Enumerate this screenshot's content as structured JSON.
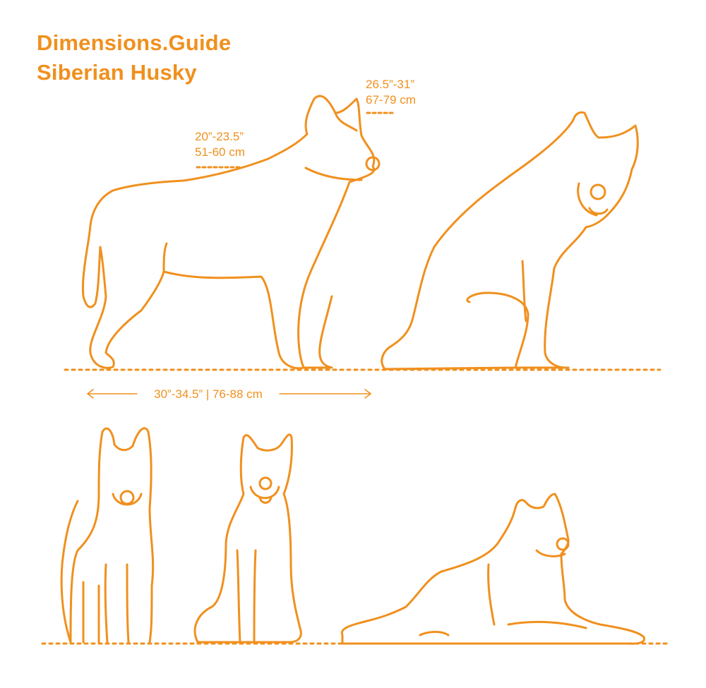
{
  "header": {
    "brand": "Dimensions.Guide",
    "subject": "Siberian Husky"
  },
  "dimensions": {
    "head_height": {
      "imperial": "26.5”-31”",
      "metric": "67-79 cm"
    },
    "shoulder_height": {
      "imperial": "20”-23.5”",
      "metric": "51-60 cm"
    },
    "length": {
      "label": "30”-34.5” | 76-88 cm"
    }
  },
  "poses": [
    "standing-side",
    "sitting-side",
    "standing-front",
    "sitting-front",
    "lying"
  ],
  "colors": {
    "accent": "#f0901e",
    "background": "#ffffff"
  }
}
